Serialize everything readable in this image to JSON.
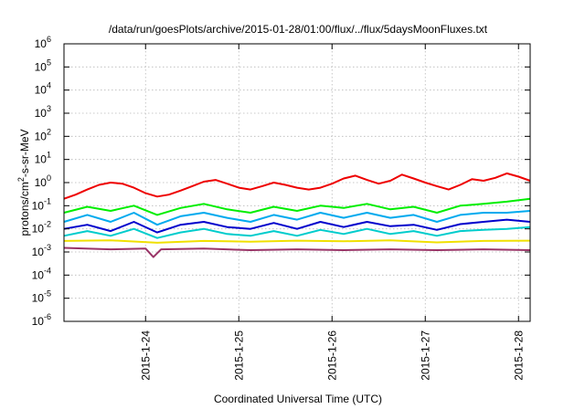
{
  "chart_data": {
    "type": "line",
    "title": "/data/run/goesPlots/archive/2015-01-28/01:00/flux/../flux/5daysMoonFluxes.txt",
    "xlabel": "Coordinated Universal Time (UTC)",
    "ylabel": {
      "base": "protons/cm",
      "sup": "2",
      "rest": "-s-sr-MeV"
    },
    "yscale": "log",
    "ylim_exponents": [
      -6,
      6
    ],
    "y_tick_labels": [
      {
        "exp": -6,
        "base": "10",
        "sup": "-6"
      },
      {
        "exp": -5,
        "base": "10",
        "sup": "-5"
      },
      {
        "exp": -4,
        "base": "10",
        "sup": "-4"
      },
      {
        "exp": -3,
        "base": "10",
        "sup": "-3"
      },
      {
        "exp": -2,
        "base": "10",
        "sup": "-2"
      },
      {
        "exp": -1,
        "base": "10",
        "sup": "-1"
      },
      {
        "exp": 0,
        "base": "10",
        "sup": "0"
      },
      {
        "exp": 1,
        "base": "10",
        "sup": "1"
      },
      {
        "exp": 2,
        "base": "10",
        "sup": "2"
      },
      {
        "exp": 3,
        "base": "10",
        "sup": "3"
      },
      {
        "exp": 4,
        "base": "10",
        "sup": "4"
      },
      {
        "exp": 5,
        "base": "10",
        "sup": "5"
      },
      {
        "exp": 6,
        "base": "10",
        "sup": "6"
      }
    ],
    "xlim": [
      "2015-01-23T03:00",
      "2015-01-28T03:00"
    ],
    "x_ticks": [
      {
        "date": "2015-01-24T00:00",
        "label": "2015-1-24"
      },
      {
        "date": "2015-01-25T00:00",
        "label": "2015-1-25"
      },
      {
        "date": "2015-01-26T00:00",
        "label": "2015-1-26"
      },
      {
        "date": "2015-01-27T00:00",
        "label": "2015-1-27"
      },
      {
        "date": "2015-01-28T00:00",
        "label": "2015-1-28"
      }
    ],
    "grid": true,
    "series": [
      {
        "color": "#ee0000",
        "x": [
          "2015-01-23T03:00",
          "2015-01-23T06:00",
          "2015-01-23T09:00",
          "2015-01-23T12:00",
          "2015-01-23T15:00",
          "2015-01-23T18:00",
          "2015-01-23T21:00",
          "2015-01-24T00:00",
          "2015-01-24T03:00",
          "2015-01-24T06:00",
          "2015-01-24T09:00",
          "2015-01-24T12:00",
          "2015-01-24T15:00",
          "2015-01-24T18:00",
          "2015-01-24T21:00",
          "2015-01-25T00:00",
          "2015-01-25T03:00",
          "2015-01-25T06:00",
          "2015-01-25T09:00",
          "2015-01-25T12:00",
          "2015-01-25T15:00",
          "2015-01-25T18:00",
          "2015-01-25T21:00",
          "2015-01-26T00:00",
          "2015-01-26T03:00",
          "2015-01-26T06:00",
          "2015-01-26T09:00",
          "2015-01-26T12:00",
          "2015-01-26T15:00",
          "2015-01-26T18:00",
          "2015-01-26T21:00",
          "2015-01-27T00:00",
          "2015-01-27T03:00",
          "2015-01-27T06:00",
          "2015-01-27T09:00",
          "2015-01-27T12:00",
          "2015-01-27T15:00",
          "2015-01-27T18:00",
          "2015-01-27T21:00",
          "2015-01-28T00:00",
          "2015-01-28T03:00"
        ],
        "values": [
          0.2,
          0.3,
          0.5,
          0.8,
          1.0,
          0.9,
          0.6,
          0.35,
          0.25,
          0.3,
          0.45,
          0.7,
          1.1,
          1.3,
          0.9,
          0.6,
          0.5,
          0.7,
          1.0,
          0.8,
          0.6,
          0.5,
          0.6,
          0.9,
          1.5,
          2.0,
          1.3,
          0.9,
          1.2,
          2.2,
          1.5,
          1.0,
          0.7,
          0.5,
          0.8,
          1.4,
          1.2,
          1.6,
          2.5,
          1.8,
          1.2
        ]
      },
      {
        "color": "#00ee00",
        "x": [
          "2015-01-23T03:00",
          "2015-01-23T09:00",
          "2015-01-23T15:00",
          "2015-01-23T21:00",
          "2015-01-24T03:00",
          "2015-01-24T09:00",
          "2015-01-24T15:00",
          "2015-01-24T21:00",
          "2015-01-25T03:00",
          "2015-01-25T09:00",
          "2015-01-25T15:00",
          "2015-01-25T21:00",
          "2015-01-26T03:00",
          "2015-01-26T09:00",
          "2015-01-26T15:00",
          "2015-01-26T21:00",
          "2015-01-27T03:00",
          "2015-01-27T09:00",
          "2015-01-27T15:00",
          "2015-01-27T21:00",
          "2015-01-28T03:00"
        ],
        "values": [
          0.05,
          0.09,
          0.06,
          0.1,
          0.04,
          0.08,
          0.12,
          0.07,
          0.05,
          0.09,
          0.06,
          0.1,
          0.08,
          0.12,
          0.07,
          0.09,
          0.05,
          0.1,
          0.12,
          0.15,
          0.2
        ]
      },
      {
        "color": "#00aaee",
        "x": [
          "2015-01-23T03:00",
          "2015-01-23T09:00",
          "2015-01-23T15:00",
          "2015-01-23T21:00",
          "2015-01-24T03:00",
          "2015-01-24T09:00",
          "2015-01-24T15:00",
          "2015-01-24T21:00",
          "2015-01-25T03:00",
          "2015-01-25T09:00",
          "2015-01-25T15:00",
          "2015-01-25T21:00",
          "2015-01-26T03:00",
          "2015-01-26T09:00",
          "2015-01-26T15:00",
          "2015-01-26T21:00",
          "2015-01-27T03:00",
          "2015-01-27T09:00",
          "2015-01-27T15:00",
          "2015-01-27T21:00",
          "2015-01-28T03:00"
        ],
        "values": [
          0.02,
          0.04,
          0.02,
          0.05,
          0.015,
          0.035,
          0.05,
          0.03,
          0.02,
          0.04,
          0.025,
          0.05,
          0.03,
          0.05,
          0.03,
          0.04,
          0.02,
          0.04,
          0.05,
          0.05,
          0.06
        ]
      },
      {
        "color": "#0000cc",
        "x": [
          "2015-01-23T03:00",
          "2015-01-23T09:00",
          "2015-01-23T15:00",
          "2015-01-23T21:00",
          "2015-01-24T03:00",
          "2015-01-24T09:00",
          "2015-01-24T15:00",
          "2015-01-24T21:00",
          "2015-01-25T03:00",
          "2015-01-25T09:00",
          "2015-01-25T15:00",
          "2015-01-25T21:00",
          "2015-01-26T03:00",
          "2015-01-26T09:00",
          "2015-01-26T15:00",
          "2015-01-26T21:00",
          "2015-01-27T03:00",
          "2015-01-27T09:00",
          "2015-01-27T15:00",
          "2015-01-27T21:00",
          "2015-01-28T03:00"
        ],
        "values": [
          0.01,
          0.015,
          0.008,
          0.02,
          0.007,
          0.015,
          0.02,
          0.012,
          0.01,
          0.018,
          0.01,
          0.02,
          0.012,
          0.02,
          0.013,
          0.015,
          0.009,
          0.016,
          0.02,
          0.025,
          0.02
        ]
      },
      {
        "color": "#00cccc",
        "x": [
          "2015-01-23T03:00",
          "2015-01-23T09:00",
          "2015-01-23T15:00",
          "2015-01-23T21:00",
          "2015-01-24T03:00",
          "2015-01-24T09:00",
          "2015-01-24T15:00",
          "2015-01-24T21:00",
          "2015-01-25T03:00",
          "2015-01-25T09:00",
          "2015-01-25T15:00",
          "2015-01-25T21:00",
          "2015-01-26T03:00",
          "2015-01-26T09:00",
          "2015-01-26T15:00",
          "2015-01-26T21:00",
          "2015-01-27T03:00",
          "2015-01-27T09:00",
          "2015-01-27T15:00",
          "2015-01-27T21:00",
          "2015-01-28T03:00"
        ],
        "values": [
          0.005,
          0.008,
          0.005,
          0.01,
          0.004,
          0.007,
          0.01,
          0.006,
          0.005,
          0.008,
          0.005,
          0.009,
          0.006,
          0.01,
          0.006,
          0.008,
          0.005,
          0.008,
          0.009,
          0.01,
          0.012
        ]
      },
      {
        "color": "#f0e000",
        "x": [
          "2015-01-23T03:00",
          "2015-01-23T15:00",
          "2015-01-24T03:00",
          "2015-01-24T15:00",
          "2015-01-25T03:00",
          "2015-01-25T15:00",
          "2015-01-26T03:00",
          "2015-01-26T15:00",
          "2015-01-27T03:00",
          "2015-01-27T15:00",
          "2015-01-28T03:00"
        ],
        "values": [
          0.003,
          0.0032,
          0.0025,
          0.003,
          0.0028,
          0.0031,
          0.0029,
          0.0032,
          0.0026,
          0.003,
          0.0031
        ]
      },
      {
        "color": "#993366",
        "x": [
          "2015-01-23T03:00",
          "2015-01-23T15:00",
          "2015-01-24T00:00",
          "2015-01-24T02:00",
          "2015-01-24T04:00",
          "2015-01-24T15:00",
          "2015-01-25T03:00",
          "2015-01-25T15:00",
          "2015-01-26T03:00",
          "2015-01-26T15:00",
          "2015-01-27T03:00",
          "2015-01-27T15:00",
          "2015-01-28T03:00"
        ],
        "values": [
          0.0015,
          0.0013,
          0.0014,
          0.0006,
          0.0013,
          0.0014,
          0.0012,
          0.0013,
          0.0012,
          0.0013,
          0.0012,
          0.0013,
          0.0012
        ]
      }
    ]
  }
}
